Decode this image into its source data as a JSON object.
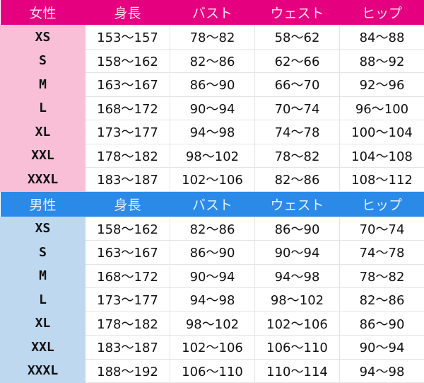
{
  "female": {
    "headers": [
      "女性",
      "身長",
      "バスト",
      "ウェスト",
      "ヒップ"
    ],
    "rows": [
      [
        "XS",
        "153～157",
        "78～82",
        "58～62",
        "84～88"
      ],
      [
        "S",
        "158～162",
        "82～86",
        "62～66",
        "88～92"
      ],
      [
        "M",
        "163～167",
        "86～90",
        "66～70",
        "92～96"
      ],
      [
        "L",
        "168～172",
        "90～94",
        "70～74",
        "96～100"
      ],
      [
        "XL",
        "173～177",
        "94～98",
        "74～78",
        "100～104"
      ],
      [
        "XXL",
        "178～182",
        "98～102",
        "78～82",
        "104～108"
      ],
      [
        "XXXL",
        "183～187",
        "102～106",
        "82～86",
        "108～112"
      ]
    ],
    "header_color": "#e4007f",
    "label_color": "#f8bfd6"
  },
  "male": {
    "headers": [
      "男性",
      "身長",
      "バスト",
      "ウェスト",
      "ヒップ"
    ],
    "rows": [
      [
        "XS",
        "158～162",
        "82～86",
        "86～90",
        "70～74"
      ],
      [
        "S",
        "163～167",
        "86～90",
        "90～94",
        "74～78"
      ],
      [
        "M",
        "168～172",
        "90～94",
        "94～98",
        "78～82"
      ],
      [
        "L",
        "173～177",
        "94～98",
        "98～102",
        "82～86"
      ],
      [
        "XL",
        "178～182",
        "98～102",
        "102～106",
        "86～90"
      ],
      [
        "XXL",
        "183～187",
        "102～106",
        "106～110",
        "90～94"
      ],
      [
        "XXXL",
        "188～192",
        "106～110",
        "110～114",
        "94～98"
      ]
    ],
    "header_color": "#2b8ae8",
    "label_color": "#bdd8ef"
  }
}
